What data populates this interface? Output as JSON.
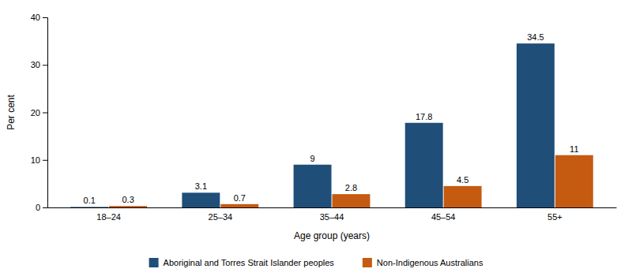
{
  "chart_data": {
    "type": "bar",
    "categories": [
      "18–24",
      "25–34",
      "35–44",
      "45–54",
      "55+"
    ],
    "series": [
      {
        "name": "Aboriginal and Torres Strait Islander peoples",
        "color": "#1F4E79",
        "values": [
          0.1,
          3.1,
          9,
          17.8,
          34.5
        ]
      },
      {
        "name": "Non-Indigenous Australians",
        "color": "#C55A11",
        "values": [
          0.3,
          0.7,
          2.8,
          4.5,
          11
        ]
      }
    ],
    "xlabel": "Age group (years)",
    "ylabel": "Per cent",
    "ylim": [
      0,
      40
    ],
    "yticks": [
      0,
      10,
      20,
      30,
      40
    ],
    "grid": false,
    "legend": "bottom",
    "data_labels": true
  }
}
